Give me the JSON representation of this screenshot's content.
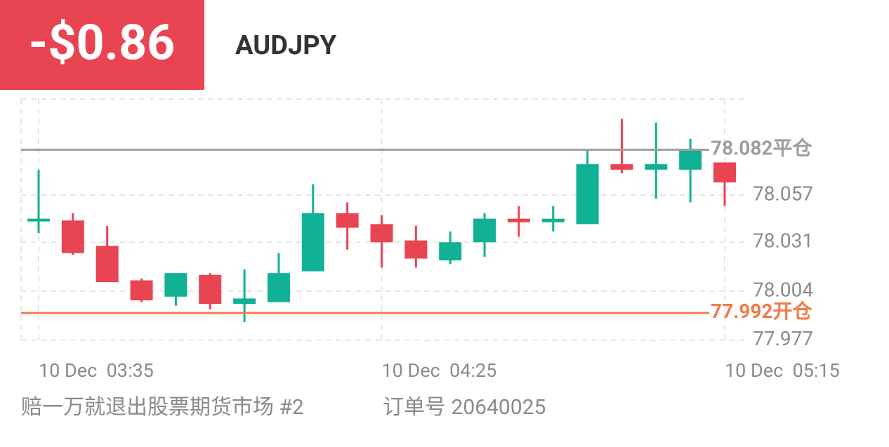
{
  "header": {
    "pnl": "-$0.86",
    "symbol": "AUDJPY"
  },
  "footer": {
    "account": "赔一万就退出股票期货市场 #2",
    "order_label": "订单号",
    "order_no": "20640025"
  },
  "chart_data": {
    "type": "candlestick",
    "categories": [
      "10 Dec  03:35",
      null,
      null,
      null,
      null,
      null,
      null,
      null,
      null,
      null,
      "10 Dec  04:25",
      null,
      null,
      null,
      null,
      null,
      null,
      null,
      null,
      null,
      "10 Dec  05:15"
    ],
    "open": [
      78.043,
      78.043,
      78.029,
      78.01,
      78.001,
      78.013,
      77.997,
      77.998,
      78.015,
      78.047,
      78.041,
      78.032,
      78.021,
      78.031,
      78.044,
      78.042,
      78.041,
      78.074,
      78.071,
      78.071,
      78.075
    ],
    "close": [
      78.044,
      78.025,
      78.009,
      77.999,
      78.014,
      77.997,
      78.0,
      78.014,
      78.047,
      78.039,
      78.031,
      78.022,
      78.031,
      78.044,
      78.042,
      78.044,
      78.074,
      78.071,
      78.074,
      78.082,
      78.064
    ],
    "high": [
      78.071,
      78.047,
      78.04,
      78.011,
      78.014,
      78.014,
      78.016,
      78.025,
      78.063,
      78.053,
      78.046,
      78.04,
      78.037,
      78.047,
      78.051,
      78.051,
      78.082,
      78.099,
      78.097,
      78.088,
      78.075
    ],
    "low": [
      78.036,
      78.024,
      78.009,
      77.998,
      77.996,
      77.994,
      77.987,
      77.998,
      78.015,
      78.027,
      78.017,
      78.017,
      78.019,
      78.023,
      78.034,
      78.037,
      78.041,
      78.069,
      78.055,
      78.053,
      78.051
    ],
    "up_color": "#10b194",
    "down_color": "#e94452",
    "ylim": [
      77.975,
      78.11
    ],
    "yticks": [
      77.977,
      78.004,
      78.031,
      78.057
    ],
    "grid": true,
    "price_lines": [
      {
        "value": 78.082,
        "label": "平仓",
        "color": "#9e9e9e"
      },
      {
        "value": 77.992,
        "label": "开仓",
        "color": "#f27a4a"
      }
    ]
  }
}
